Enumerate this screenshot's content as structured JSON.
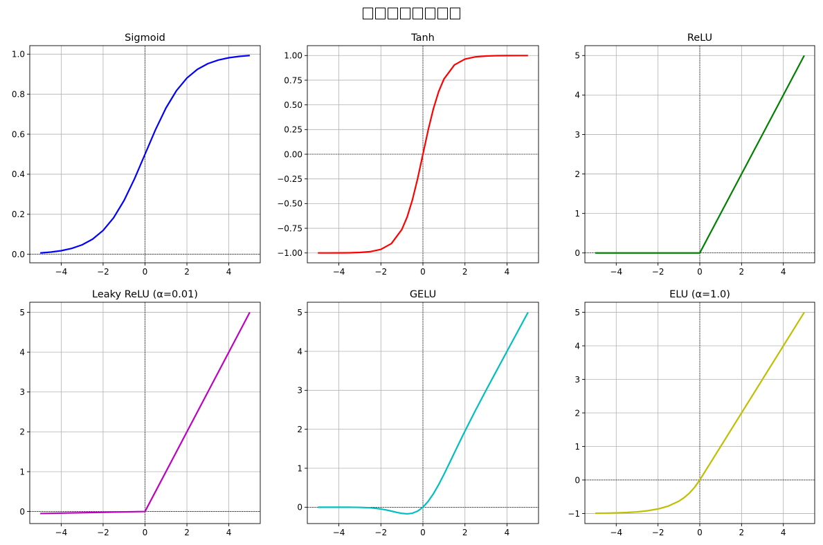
{
  "figure": {
    "suptitle_glyph_count": 8
  },
  "chart_data": [
    {
      "type": "line",
      "title": "Sigmoid",
      "color": "#0000ff",
      "x_ticks": [
        "−4",
        "−2",
        "0",
        "2",
        "4"
      ],
      "y_ticks": [
        "0.0",
        "0.2",
        "0.4",
        "0.6",
        "0.8",
        "1.0"
      ],
      "xlim": [
        -5.5,
        5.5
      ],
      "ylim": [
        -0.0425,
        1.0425
      ],
      "ref_h": 0,
      "ref_v": 0,
      "grid": true,
      "series": [
        {
          "x": [
            -5.0,
            -4.5,
            -4.0,
            -3.5,
            -3.0,
            -2.5,
            -2.0,
            -1.5,
            -1.0,
            -0.5,
            0.0,
            0.5,
            1.0,
            1.5,
            2.0,
            2.5,
            3.0,
            3.5,
            4.0,
            4.5,
            5.0
          ],
          "y": [
            0.0067,
            0.011,
            0.018,
            0.0293,
            0.0474,
            0.0759,
            0.1192,
            0.1824,
            0.2689,
            0.3775,
            0.5,
            0.6225,
            0.7311,
            0.8176,
            0.8808,
            0.9241,
            0.9526,
            0.9707,
            0.982,
            0.989,
            0.9933
          ]
        }
      ]
    },
    {
      "type": "line",
      "title": "Tanh",
      "color": "#ff0000",
      "x_ticks": [
        "−4",
        "−2",
        "0",
        "2",
        "4"
      ],
      "y_ticks": [
        "−1.00",
        "−0.75",
        "−0.50",
        "−0.25",
        "0.00",
        "0.25",
        "0.50",
        "0.75",
        "1.00"
      ],
      "xlim": [
        -5.5,
        5.5
      ],
      "ylim": [
        -1.1,
        1.1
      ],
      "ref_h": 0,
      "ref_v": 0,
      "grid": true,
      "series": [
        {
          "x": [
            -5.0,
            -4.5,
            -4.0,
            -3.5,
            -3.0,
            -2.5,
            -2.0,
            -1.5,
            -1.0,
            -0.75,
            -0.5,
            -0.25,
            0.0,
            0.25,
            0.5,
            0.75,
            1.0,
            1.5,
            2.0,
            2.5,
            3.0,
            3.5,
            4.0,
            4.5,
            5.0
          ],
          "y": [
            -0.9999,
            -0.9998,
            -0.9993,
            -0.9982,
            -0.9951,
            -0.9866,
            -0.964,
            -0.9051,
            -0.7616,
            -0.6351,
            -0.4621,
            -0.2449,
            0.0,
            0.2449,
            0.4621,
            0.6351,
            0.7616,
            0.9051,
            0.964,
            0.9866,
            0.9951,
            0.9982,
            0.9993,
            0.9998,
            0.9999
          ]
        }
      ]
    },
    {
      "type": "line",
      "title": "ReLU",
      "color": "#008000",
      "x_ticks": [
        "−4",
        "−2",
        "0",
        "2",
        "4"
      ],
      "y_ticks": [
        "0",
        "1",
        "2",
        "3",
        "4",
        "5"
      ],
      "xlim": [
        -5.5,
        5.5
      ],
      "ylim": [
        -0.25,
        5.25
      ],
      "ref_h": 0,
      "ref_v": 0,
      "grid": true,
      "series": [
        {
          "x": [
            -5.0,
            0.0,
            5.0
          ],
          "y": [
            0.0,
            0.0,
            5.0
          ]
        }
      ]
    },
    {
      "type": "line",
      "title": "Leaky ReLU (α=0.01)",
      "color": "#bf00bf",
      "x_ticks": [
        "−4",
        "−2",
        "0",
        "2",
        "4"
      ],
      "y_ticks": [
        "0",
        "1",
        "2",
        "3",
        "4",
        "5"
      ],
      "xlim": [
        -5.5,
        5.5
      ],
      "ylim": [
        -0.3025,
        5.2525
      ],
      "ref_h": 0,
      "ref_v": 0,
      "grid": true,
      "series": [
        {
          "x": [
            -5.0,
            0.0,
            5.0
          ],
          "y": [
            -0.05,
            0.0,
            5.0
          ]
        }
      ]
    },
    {
      "type": "line",
      "title": "GELU",
      "color": "#00bfbf",
      "x_ticks": [
        "−4",
        "−2",
        "0",
        "2",
        "4"
      ],
      "y_ticks": [
        "0",
        "1",
        "2",
        "3",
        "4",
        "5"
      ],
      "xlim": [
        -5.5,
        5.5
      ],
      "ylim": [
        -0.42,
        5.26
      ],
      "ref_h": 0,
      "ref_v": 0,
      "grid": true,
      "series": [
        {
          "x": [
            -5.0,
            -4.0,
            -3.5,
            -3.0,
            -2.5,
            -2.0,
            -1.75,
            -1.5,
            -1.25,
            -1.0,
            -0.75,
            -0.5,
            -0.25,
            0.0,
            0.25,
            0.5,
            0.75,
            1.0,
            1.25,
            1.5,
            2.0,
            2.5,
            3.0,
            3.5,
            4.0,
            5.0
          ],
          "y": [
            0.0,
            -0.0001,
            -0.0008,
            -0.0036,
            -0.0154,
            -0.0454,
            -0.07,
            -0.1004,
            -0.132,
            -0.1588,
            -0.17,
            -0.1543,
            -0.1003,
            0.0,
            0.1497,
            0.3457,
            0.58,
            0.8412,
            1.118,
            1.3996,
            1.9546,
            2.4846,
            2.9964,
            3.4992,
            3.9999,
            5.0
          ]
        }
      ]
    },
    {
      "type": "line",
      "title": "ELU (α=1.0)",
      "color": "#bfbf00",
      "x_ticks": [
        "−4",
        "−2",
        "0",
        "2",
        "4"
      ],
      "y_ticks": [
        "−1",
        "0",
        "1",
        "2",
        "3",
        "4",
        "5"
      ],
      "xlim": [
        -5.5,
        5.5
      ],
      "ylim": [
        -1.3,
        5.3
      ],
      "ref_h": 0,
      "ref_v": 0,
      "grid": true,
      "series": [
        {
          "x": [
            -5.0,
            -4.5,
            -4.0,
            -3.5,
            -3.0,
            -2.5,
            -2.0,
            -1.5,
            -1.0,
            -0.75,
            -0.5,
            -0.25,
            0.0,
            5.0
          ],
          "y": [
            -0.9933,
            -0.9889,
            -0.9817,
            -0.9698,
            -0.9502,
            -0.9179,
            -0.8647,
            -0.7769,
            -0.6321,
            -0.5276,
            -0.3935,
            -0.2212,
            0.0,
            5.0
          ]
        }
      ]
    }
  ]
}
